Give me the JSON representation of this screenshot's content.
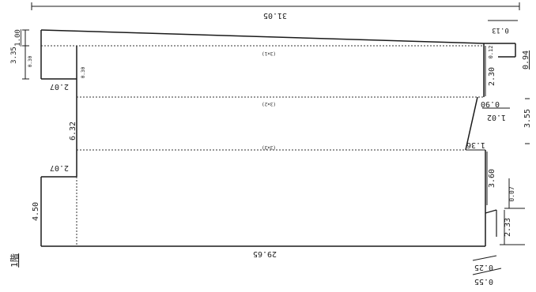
{
  "drawing": {
    "floor_label": "1階",
    "dims": {
      "total_width": "31.05",
      "base_width": "29.65",
      "left_top": "1.00",
      "left_upper": "3.35",
      "left_mid": "6.32",
      "left_low": "4.50",
      "notch_top": "2.07",
      "notch_bottom": "2.07",
      "right_top_offset": "0.13",
      "right_top_a": "0.12",
      "right_top_b": "0.94",
      "right_mid": "2.30",
      "step_a": "0.90",
      "step_b": "1.02",
      "right_extent": "3.55",
      "step_c": "1.36",
      "right_low": "3.60",
      "right_low_b": "0.07",
      "right_bottom": "2.33",
      "bottom_offset_a": "0.25",
      "bottom_offset_b": "0.55",
      "small_left": "0.30"
    },
    "room_labels": {
      "room_a": "(3×1)",
      "room_b": "(3×2)",
      "room_c": "(3×3)"
    }
  }
}
